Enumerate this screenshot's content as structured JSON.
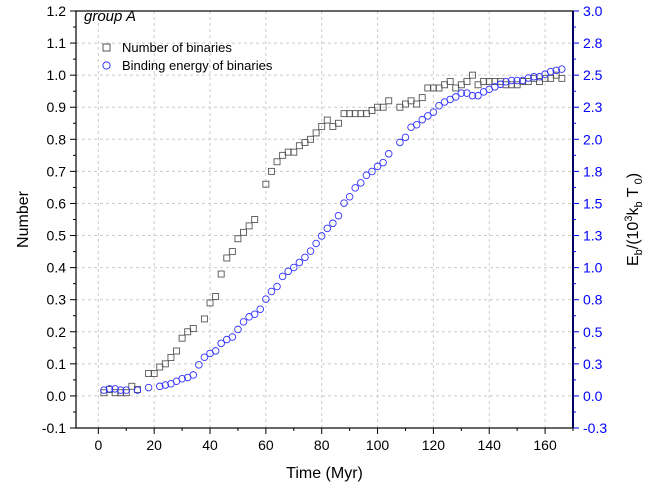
{
  "chart_data": {
    "type": "scatter",
    "panel_label": "group A",
    "xlabel": "Time (Myr)",
    "ylabel": "Number",
    "y2label_html": {
      "base": "E",
      "sub1": "b",
      "mid1": "/(10",
      "sup": "3",
      "mid2": "k",
      "sub2": "b",
      "mid3": " T",
      "sub3": " 0",
      "end": ")"
    },
    "xlim": [
      -8,
      170
    ],
    "ylim": [
      -0.1,
      1.2
    ],
    "y2lim": [
      -0.3,
      3.0
    ],
    "x_ticks": [
      0,
      20,
      40,
      60,
      80,
      100,
      120,
      140,
      160
    ],
    "y_ticks": [
      -0.1,
      0.0,
      0.1,
      0.2,
      0.3,
      0.4,
      0.5,
      0.6,
      0.7,
      0.8,
      0.9,
      1.0,
      1.1,
      1.2
    ],
    "y2_ticks": [
      -0.3,
      0.0,
      0.3,
      0.5,
      0.8,
      1.0,
      1.3,
      1.5,
      1.8,
      2.0,
      2.3,
      2.5,
      2.8,
      3.0
    ],
    "grid": true,
    "legend_position": "top-left",
    "colors": {
      "series1": "#555555",
      "series2": "#3333ff",
      "right_axis": "#0000ff"
    },
    "series": [
      {
        "name": "Number of binaries",
        "axis": "left",
        "marker": "square",
        "x": [
          2,
          4,
          6,
          8,
          10,
          12,
          14,
          18,
          20,
          22,
          24,
          26,
          28,
          30,
          32,
          34,
          38,
          40,
          42,
          44,
          46,
          48,
          50,
          52,
          54,
          56,
          60,
          62,
          64,
          66,
          68,
          70,
          72,
          74,
          76,
          78,
          80,
          82,
          84,
          86,
          88,
          90,
          92,
          94,
          96,
          98,
          100,
          102,
          104,
          108,
          110,
          112,
          114,
          116,
          118,
          120,
          122,
          124,
          126,
          128,
          130,
          132,
          134,
          136,
          138,
          140,
          142,
          144,
          146,
          148,
          150,
          152,
          154,
          156,
          158,
          160,
          162,
          164,
          166
        ],
        "y": [
          0.01,
          0.02,
          0.01,
          0.01,
          0.01,
          0.03,
          0.02,
          0.07,
          0.07,
          0.09,
          0.1,
          0.12,
          0.14,
          0.18,
          0.2,
          0.21,
          0.24,
          0.29,
          0.31,
          0.38,
          0.43,
          0.45,
          0.49,
          0.51,
          0.53,
          0.55,
          0.66,
          0.7,
          0.73,
          0.75,
          0.76,
          0.76,
          0.78,
          0.79,
          0.8,
          0.82,
          0.84,
          0.86,
          0.84,
          0.85,
          0.88,
          0.88,
          0.88,
          0.88,
          0.88,
          0.89,
          0.9,
          0.9,
          0.92,
          0.9,
          0.91,
          0.92,
          0.91,
          0.93,
          0.96,
          0.96,
          0.96,
          0.97,
          0.98,
          0.96,
          0.97,
          0.98,
          1.0,
          0.97,
          0.98,
          0.98,
          0.98,
          0.98,
          0.97,
          0.97,
          0.97,
          0.98,
          0.98,
          0.99,
          0.98,
          0.99,
          0.99,
          1.0,
          0.99
        ]
      },
      {
        "name": "Binding energy of binaries",
        "axis": "right",
        "marker": "circle",
        "x": [
          2,
          4,
          6,
          8,
          10,
          14,
          18,
          22,
          24,
          26,
          28,
          30,
          32,
          34,
          36,
          38,
          40,
          42,
          44,
          46,
          48,
          50,
          52,
          54,
          56,
          58,
          60,
          62,
          64,
          66,
          68,
          70,
          72,
          74,
          76,
          78,
          80,
          82,
          84,
          86,
          88,
          90,
          92,
          94,
          96,
          98,
          100,
          102,
          104,
          108,
          110,
          112,
          114,
          116,
          118,
          120,
          122,
          124,
          126,
          128,
          130,
          132,
          134,
          136,
          138,
          140,
          142,
          144,
          146,
          148,
          150,
          152,
          154,
          156,
          158,
          160,
          162,
          164,
          166
        ],
        "y": [
          0.0,
          0.01,
          0.01,
          0.0,
          0.0,
          0.0,
          0.02,
          0.03,
          0.04,
          0.05,
          0.07,
          0.09,
          0.1,
          0.12,
          0.2,
          0.26,
          0.29,
          0.31,
          0.37,
          0.4,
          0.42,
          0.48,
          0.54,
          0.58,
          0.6,
          0.64,
          0.72,
          0.78,
          0.82,
          0.9,
          0.94,
          0.97,
          1.01,
          1.05,
          1.1,
          1.16,
          1.22,
          1.28,
          1.32,
          1.38,
          1.48,
          1.53,
          1.6,
          1.64,
          1.7,
          1.73,
          1.77,
          1.8,
          1.87,
          1.96,
          2.0,
          2.08,
          2.1,
          2.14,
          2.17,
          2.2,
          2.25,
          2.28,
          2.3,
          2.32,
          2.35,
          2.35,
          2.33,
          2.33,
          2.36,
          2.38,
          2.4,
          2.42,
          2.44,
          2.45,
          2.45,
          2.45,
          2.47,
          2.48,
          2.48,
          2.5,
          2.52,
          2.53,
          2.54
        ]
      }
    ]
  }
}
